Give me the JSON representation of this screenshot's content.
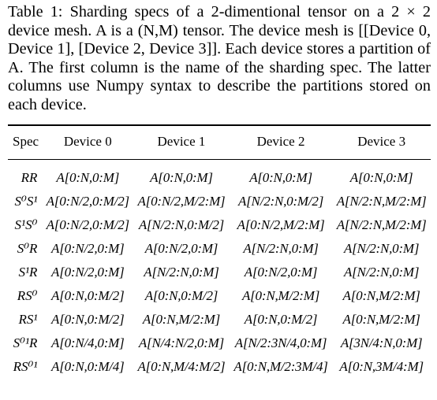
{
  "caption": {
    "label": "Table 1:",
    "text": "Sharding specs of a 2-dimentional tensor on a 2 × 2 device mesh. A is a (N,M) tensor. The device mesh is [[Device 0, Device 1], [Device 2, Device 3]]. Each device stores a partition of A. The first column is the name of the sharding spec. The latter columns use Numpy syntax to describe the partitions stored on each device."
  },
  "table": {
    "headers": [
      "Spec",
      "Device 0",
      "Device 1",
      "Device 2",
      "Device 3"
    ],
    "rows": [
      {
        "spec": "RR",
        "cells": [
          "A[0:N,0:M]",
          "A[0:N,0:M]",
          "A[0:N,0:M]",
          "A[0:N,0:M]"
        ]
      },
      {
        "spec": "S⁰S¹",
        "cells": [
          "A[0:N/2,0:M/2]",
          "A[0:N/2,M/2:M]",
          "A[N/2:N,0:M/2]",
          "A[N/2:N,M/2:M]"
        ]
      },
      {
        "spec": "S¹S⁰",
        "cells": [
          "A[0:N/2,0:M/2]",
          "A[N/2:N,0:M/2]",
          "A[0:N/2,M/2:M]",
          "A[N/2:N,M/2:M]"
        ]
      },
      {
        "spec": "S⁰R",
        "cells": [
          "A[0:N/2,0:M]",
          "A[0:N/2,0:M]",
          "A[N/2:N,0:M]",
          "A[N/2:N,0:M]"
        ]
      },
      {
        "spec": "S¹R",
        "cells": [
          "A[0:N/2,0:M]",
          "A[N/2:N,0:M]",
          "A[0:N/2,0:M]",
          "A[N/2:N,0:M]"
        ]
      },
      {
        "spec": "RS⁰",
        "cells": [
          "A[0:N,0:M/2]",
          "A[0:N,0:M/2]",
          "A[0:N,M/2:M]",
          "A[0:N,M/2:M]"
        ]
      },
      {
        "spec": "RS¹",
        "cells": [
          "A[0:N,0:M/2]",
          "A[0:N,M/2:M]",
          "A[0:N,0:M/2]",
          "A[0:N,M/2:M]"
        ]
      },
      {
        "spec": "S⁰¹R",
        "cells": [
          "A[0:N/4,0:M]",
          "A[N/4:N/2,0:M]",
          "A[N/2:3N/4,0:M]",
          "A[3N/4:N,0:M]"
        ]
      },
      {
        "spec": "RS⁰¹",
        "cells": [
          "A[0:N,0:M/4]",
          "A[0:N,M/4:M/2]",
          "A[0:N,M/2:3M/4]",
          "A[0:N,3M/4:M]"
        ]
      }
    ]
  }
}
